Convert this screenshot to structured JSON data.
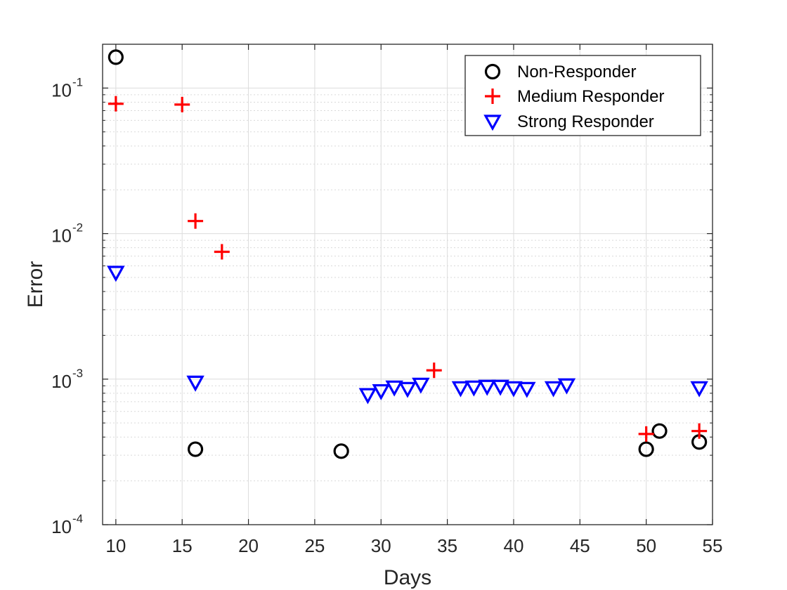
{
  "chart_data": {
    "type": "scatter",
    "title": "",
    "xlabel": "Days",
    "ylabel": "Error",
    "xlim": [
      9,
      55
    ],
    "ylim": [
      0.0001,
      0.2
    ],
    "yscale": "log",
    "grid": true,
    "minor_grid": true,
    "legend_position": "top-right",
    "x_ticks": [
      10,
      15,
      20,
      25,
      30,
      35,
      40,
      45,
      50,
      55
    ],
    "y_ticks": [
      {
        "value": 0.0001,
        "base": "10",
        "exp": "-4"
      },
      {
        "value": 0.001,
        "base": "10",
        "exp": "-3"
      },
      {
        "value": 0.01,
        "base": "10",
        "exp": "-2"
      },
      {
        "value": 0.1,
        "base": "10",
        "exp": "-1"
      }
    ],
    "series": [
      {
        "name": "Non-Responder",
        "marker": "circle",
        "color": "#000000",
        "points": [
          [
            10,
            0.163
          ],
          [
            16,
            0.00033
          ],
          [
            27,
            0.00032
          ],
          [
            50,
            0.00033
          ],
          [
            51,
            0.00044
          ],
          [
            54,
            0.00037
          ]
        ]
      },
      {
        "name": "Medium Responder",
        "marker": "plus",
        "color": "#ff0000",
        "points": [
          [
            10,
            0.078
          ],
          [
            15,
            0.077
          ],
          [
            16,
            0.0122
          ],
          [
            18,
            0.0075
          ],
          [
            34,
            0.00115
          ],
          [
            50,
            0.00042
          ],
          [
            54,
            0.00044
          ]
        ]
      },
      {
        "name": "Strong Responder",
        "marker": "triangle-down",
        "color": "#0000ff",
        "points": [
          [
            10,
            0.0054
          ],
          [
            16,
            0.00095
          ],
          [
            29,
            0.00078
          ],
          [
            30,
            0.00083
          ],
          [
            31,
            0.00088
          ],
          [
            32,
            0.00086
          ],
          [
            33,
            0.00092
          ],
          [
            36,
            0.00087
          ],
          [
            37,
            0.00088
          ],
          [
            38,
            0.00089
          ],
          [
            39,
            0.00089
          ],
          [
            40,
            0.00087
          ],
          [
            41,
            0.00086
          ],
          [
            43,
            0.00087
          ],
          [
            44,
            0.00091
          ],
          [
            54,
            0.00087
          ]
        ]
      }
    ]
  }
}
